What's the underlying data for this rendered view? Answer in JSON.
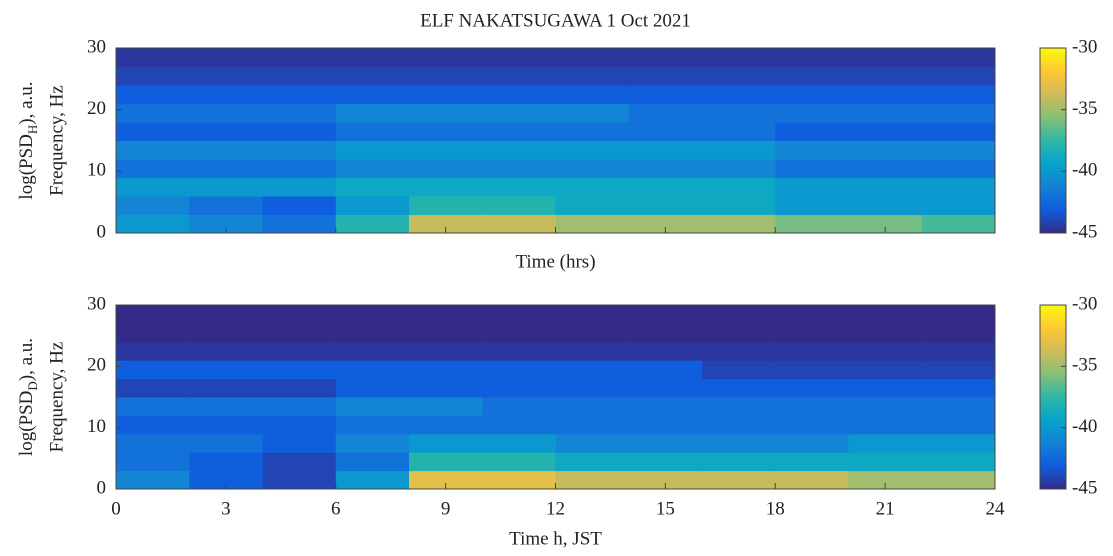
{
  "chart_data": [
    {
      "type": "heatmap",
      "title": "ELF NAKATSUGAWA 1 Oct 2021",
      "ylabel": {
        "text": "log(PSD",
        "sub": "H",
        "tail": "), a.u."
      },
      "ylabel2": "Frequency, Hz",
      "xlabel": "Time (hrs)",
      "xbins": [
        0,
        2,
        4,
        6,
        8,
        10,
        12,
        14,
        16,
        18,
        20,
        22,
        24
      ],
      "ybins": [
        0,
        3,
        6,
        9,
        12,
        15,
        18,
        21,
        24,
        27,
        30
      ],
      "values": [
        [
          -40,
          -41,
          -42,
          -38,
          -34,
          -34,
          -35,
          -35,
          -35,
          -36,
          -36,
          -37
        ],
        [
          -41,
          -42,
          -43,
          -40,
          -38,
          -38,
          -39,
          -39,
          -39,
          -40,
          -40,
          -40
        ],
        [
          -40,
          -40,
          -40,
          -39,
          -39,
          -39,
          -39,
          -39,
          -39,
          -40,
          -40,
          -40
        ],
        [
          -42,
          -42,
          -42,
          -41,
          -41,
          -41,
          -41,
          -41,
          -41,
          -42,
          -42,
          -42
        ],
        [
          -41,
          -41,
          -41,
          -40,
          -40,
          -40,
          -40,
          -40,
          -40,
          -41,
          -41,
          -41
        ],
        [
          -43,
          -43,
          -43,
          -42,
          -42,
          -42,
          -42,
          -42,
          -42,
          -43,
          -43,
          -43
        ],
        [
          -42,
          -42,
          -42,
          -41,
          -41,
          -41,
          -41,
          -42,
          -42,
          -42,
          -42,
          -42
        ],
        [
          -43,
          -43,
          -43,
          -43,
          -43,
          -43,
          -43,
          -43,
          -43,
          -43,
          -43,
          -43
        ],
        [
          -44,
          -44,
          -44,
          -44,
          -44,
          -44,
          -44,
          -44,
          -44,
          -44,
          -44,
          -44
        ],
        [
          -44.5,
          -44.5,
          -44.5,
          -44.5,
          -44.5,
          -44.5,
          -44.5,
          -44.5,
          -44.5,
          -44.5,
          -44.5,
          -44.5
        ]
      ],
      "xlim": [
        0,
        24
      ],
      "xticks": [
        0,
        3,
        6,
        9,
        12,
        15,
        18,
        21,
        24
      ],
      "xticklabels": false,
      "ylim": [
        0,
        30
      ],
      "yticks": [
        0,
        10,
        20,
        30
      ],
      "clim": [
        -45,
        -30
      ],
      "cticks": [
        -30,
        -35,
        -40,
        -45
      ],
      "colormap": [
        "#352a87",
        "#0f5cdd",
        "#1481d6",
        "#06a4ca",
        "#2eb7a4",
        "#87bf77",
        "#d1bb59",
        "#fec832",
        "#f9fb0e"
      ]
    },
    {
      "type": "heatmap",
      "ylabel": {
        "text": "log(PSD",
        "sub": "D",
        "tail": "), a.u."
      },
      "ylabel2": "Frequency, Hz",
      "xlabel": "Time h, JST",
      "xbins": [
        0,
        2,
        4,
        6,
        8,
        10,
        12,
        14,
        16,
        18,
        20,
        22,
        24
      ],
      "ybins": [
        0,
        3,
        6,
        9,
        12,
        15,
        18,
        21,
        24,
        27,
        30
      ],
      "values": [
        [
          -41,
          -43,
          -44,
          -40,
          -33,
          -33,
          -34,
          -34,
          -34,
          -34,
          -35,
          -35
        ],
        [
          -42,
          -43,
          -44,
          -42,
          -38,
          -38,
          -39,
          -39,
          -39,
          -39,
          -39,
          -39
        ],
        [
          -42,
          -42,
          -43,
          -41,
          -40,
          -40,
          -41,
          -41,
          -41,
          -41,
          -40,
          -40
        ],
        [
          -43,
          -43,
          -43,
          -42,
          -42,
          -42,
          -42,
          -42,
          -42,
          -42,
          -42,
          -42
        ],
        [
          -42,
          -42,
          -42,
          -41,
          -41,
          -42,
          -42,
          -42,
          -42,
          -42,
          -42,
          -42
        ],
        [
          -44,
          -44,
          -44,
          -43,
          -43,
          -43,
          -43,
          -43,
          -43,
          -43,
          -43,
          -43
        ],
        [
          -43,
          -43,
          -43,
          -43,
          -43,
          -43,
          -43,
          -43,
          -44,
          -44,
          -44,
          -44
        ],
        [
          -44.5,
          -44.5,
          -44.5,
          -44.5,
          -44.5,
          -44.5,
          -44.5,
          -44.5,
          -44.5,
          -44.5,
          -44.5,
          -44.5
        ],
        [
          -45,
          -45,
          -45,
          -45,
          -45,
          -45,
          -45,
          -45,
          -45,
          -45,
          -45,
          -45
        ],
        [
          -45,
          -45,
          -45,
          -45,
          -45,
          -45,
          -45,
          -45,
          -45,
          -45,
          -45,
          -45
        ]
      ],
      "xlim": [
        0,
        24
      ],
      "xticks": [
        0,
        3,
        6,
        9,
        12,
        15,
        18,
        21,
        24
      ],
      "xticklabels": true,
      "ylim": [
        0,
        30
      ],
      "yticks": [
        0,
        10,
        20,
        30
      ],
      "clim": [
        -45,
        -30
      ],
      "cticks": [
        -30,
        -35,
        -40,
        -45
      ],
      "colormap": [
        "#352a87",
        "#0f5cdd",
        "#1481d6",
        "#06a4ca",
        "#2eb7a4",
        "#87bf77",
        "#d1bb59",
        "#fec832",
        "#f9fb0e"
      ]
    }
  ]
}
